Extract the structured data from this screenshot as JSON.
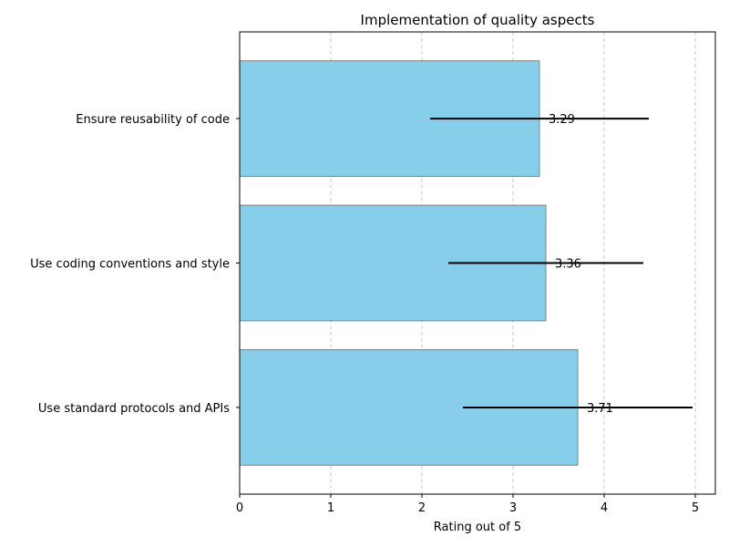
{
  "chart_data": {
    "type": "bar",
    "orientation": "horizontal",
    "title": "Implementation of quality aspects",
    "xlabel": "Rating out of 5",
    "ylabel": "",
    "categories": [
      "Use standard protocols and APIs",
      "Use coding conventions and style",
      "Ensure reusability of code"
    ],
    "values": [
      3.71,
      3.36,
      3.29
    ],
    "data_labels": [
      "3.71",
      "3.36",
      "3.29"
    ],
    "error": [
      1.26,
      1.07,
      1.2
    ],
    "xlim": [
      0,
      5.22
    ],
    "xticks": [
      "0",
      "1",
      "2",
      "3",
      "4",
      "5"
    ],
    "grid": "vertical dashed",
    "colors": {
      "bar": "#87ceeb",
      "bar_edge": "#808080",
      "error_bar": "#000000",
      "grid": "#c8c8c8"
    }
  }
}
